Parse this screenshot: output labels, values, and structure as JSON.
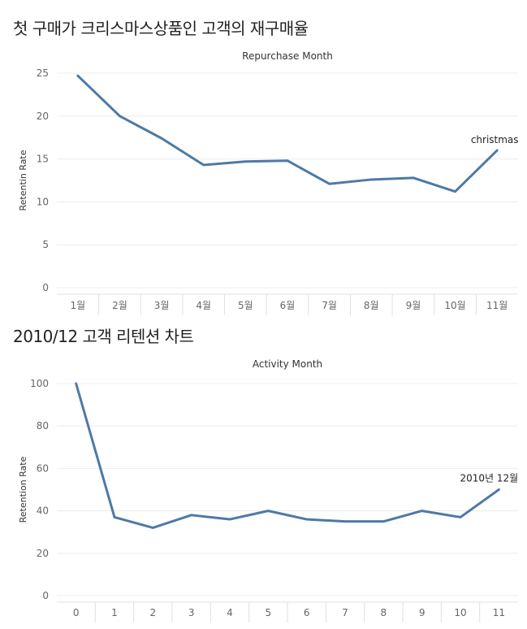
{
  "sections": [
    {
      "title": "첫 구매가 크리스마스상품인 고객의 재구매율"
    },
    {
      "title": "2010/12 고객 리텐션 차트"
    }
  ],
  "chart_data": [
    {
      "type": "line",
      "title": "Repurchase Month",
      "xlabel": "",
      "ylabel": "Retentin Rate",
      "categories": [
        "1월",
        "2월",
        "3월",
        "4월",
        "5월",
        "6월",
        "7월",
        "8월",
        "9월",
        "10월",
        "11월"
      ],
      "series": [
        {
          "values": [
            24.7,
            20.0,
            17.4,
            14.3,
            14.7,
            14.8,
            12.1,
            12.6,
            12.8,
            11.2,
            16.0
          ]
        }
      ],
      "ylim": [
        0,
        25
      ],
      "yticks": [
        0,
        5,
        10,
        15,
        20,
        25
      ],
      "grid": true,
      "color": "#4e79a7",
      "annotation": {
        "text": "christmas",
        "index": 10
      }
    },
    {
      "type": "line",
      "title": "Activity Month",
      "xlabel": "",
      "ylabel": "Retention Rate",
      "categories": [
        "0",
        "1",
        "2",
        "3",
        "4",
        "5",
        "6",
        "7",
        "8",
        "9",
        "10",
        "11"
      ],
      "series": [
        {
          "values": [
            100,
            37,
            32,
            38,
            36,
            40,
            36,
            35,
            35,
            40,
            37,
            50
          ]
        }
      ],
      "ylim": [
        0,
        100
      ],
      "yticks": [
        0,
        20,
        40,
        60,
        80,
        100
      ],
      "grid": true,
      "color": "#4e79a7",
      "annotation": {
        "text": "2010년 12월",
        "index": 11
      }
    }
  ]
}
